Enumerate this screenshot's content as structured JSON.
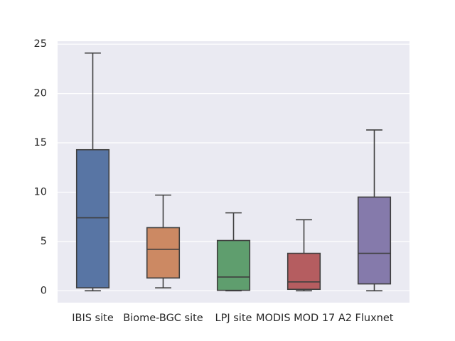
{
  "chart_data": {
    "type": "box",
    "title": "",
    "xlabel": "",
    "ylabel": "",
    "ylim": [
      -1.2,
      25.3
    ],
    "yticks": [
      0,
      5,
      10,
      15,
      20,
      25
    ],
    "grid": true,
    "categories": [
      "IBIS site",
      "Biome-BGC site",
      "LPJ site",
      "MODIS MOD 17 A2",
      "Fluxnet"
    ],
    "boxes": [
      {
        "category": "IBIS site",
        "whisker_low": 0.0,
        "q1": 0.3,
        "median": 7.4,
        "q3": 14.3,
        "whisker_high": 24.1,
        "color": "#5875a4"
      },
      {
        "category": "Biome-BGC site",
        "whisker_low": 0.3,
        "q1": 1.3,
        "median": 4.2,
        "q3": 6.4,
        "whisker_high": 9.7,
        "color": "#cc8963"
      },
      {
        "category": "LPJ site",
        "whisker_low": 0.0,
        "q1": 0.05,
        "median": 1.4,
        "q3": 5.1,
        "whisker_high": 7.9,
        "color": "#5f9e6e"
      },
      {
        "category": "MODIS MOD 17 A2",
        "whisker_low": 0.0,
        "q1": 0.15,
        "median": 0.9,
        "q3": 3.8,
        "whisker_high": 7.2,
        "color": "#b55d60"
      },
      {
        "category": "Fluxnet",
        "whisker_low": 0.0,
        "q1": 0.7,
        "median": 3.8,
        "q3": 9.5,
        "whisker_high": 16.3,
        "color": "#857aab"
      }
    ],
    "colors": {
      "background": "#eaeaf2",
      "grid": "#ffffff",
      "line": "#3f3f3f",
      "text": "#262626"
    }
  }
}
